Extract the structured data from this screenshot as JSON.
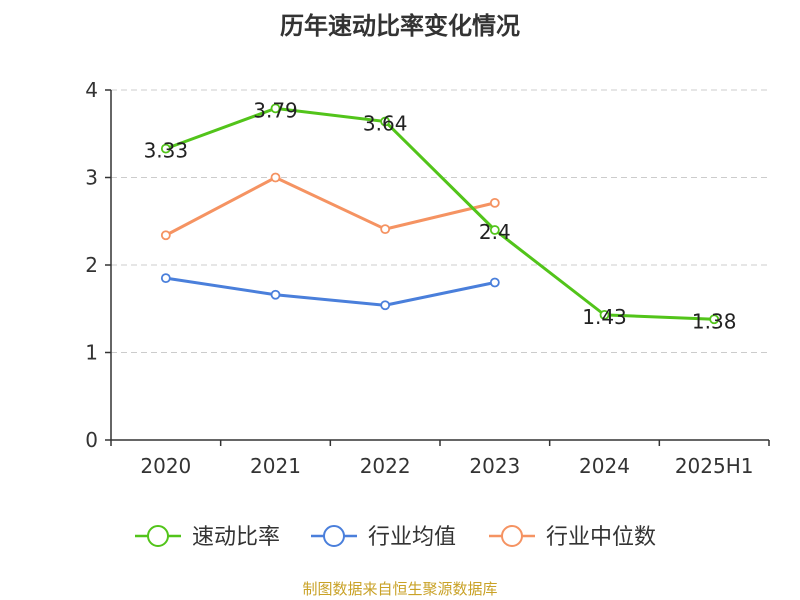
{
  "chart_data": {
    "type": "line",
    "title": "历年速动比率变化情况",
    "xlabel": "",
    "ylabel": "",
    "categories": [
      "2020",
      "2021",
      "2022",
      "2023",
      "2024",
      "2025H1"
    ],
    "ylim": [
      0,
      4
    ],
    "yticks": [
      0,
      1,
      2,
      3,
      4
    ],
    "grid": true,
    "legend_position": "bottom",
    "series": [
      {
        "name": "速动比率",
        "color": "#52c41a",
        "values": [
          3.33,
          3.79,
          3.64,
          2.4,
          1.43,
          1.38
        ],
        "data_labels": [
          "3.33",
          "3.79",
          "3.64",
          "2.4",
          "1.43",
          "1.38"
        ]
      },
      {
        "name": "行业均值",
        "color": "#4a7fdb",
        "values": [
          1.85,
          1.66,
          1.54,
          1.8,
          null,
          null
        ]
      },
      {
        "name": "行业中位数",
        "color": "#f59362",
        "values": [
          2.34,
          3.0,
          2.41,
          2.71,
          null,
          null
        ]
      }
    ]
  },
  "footer": {
    "source": "制图数据来自恒生聚源数据库"
  }
}
